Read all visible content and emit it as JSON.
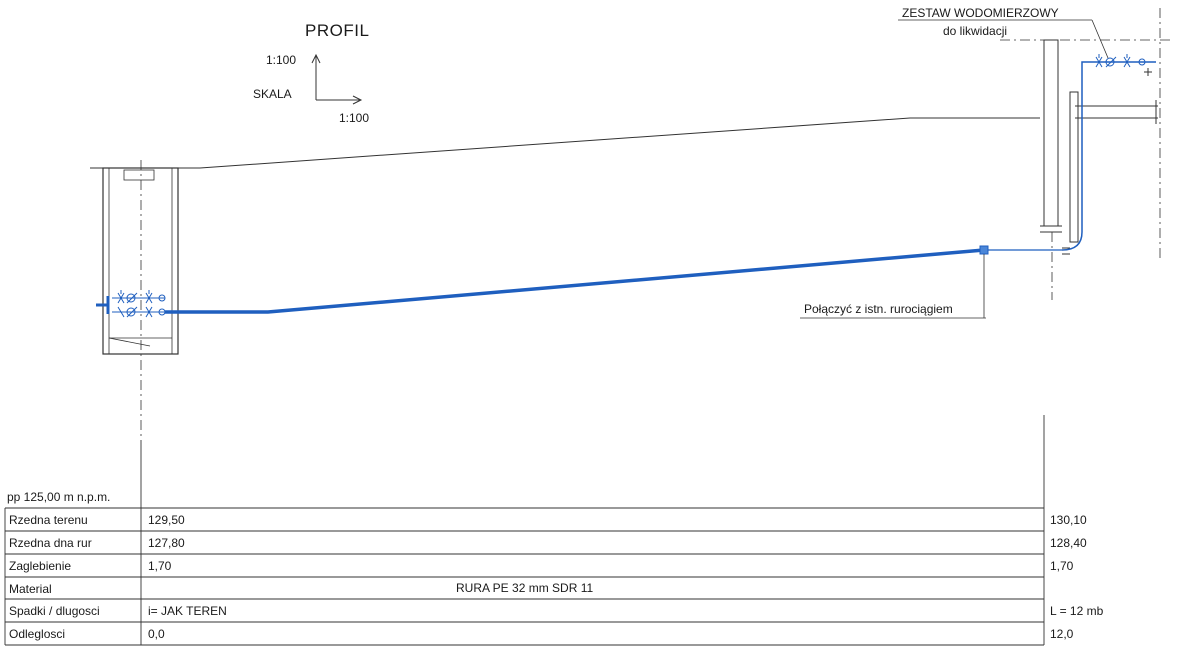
{
  "drawing": {
    "title": "PROFIL",
    "scale_label": "SKALA",
    "scale_vertical": "1:100",
    "scale_horizontal": "1:100",
    "meter_set_label": "ZESTAW WODOMIERZOWY",
    "meter_set_sublabel": "do likwidacji",
    "connect_note": "Połączyć z istn. rurociągiem",
    "pipe_color": "#1f5fbf",
    "line_color": "#333333"
  },
  "table": {
    "datum": "pp 125,00 m n.p.m.",
    "rows": [
      {
        "label": "Rzedna terenu",
        "start": "129,50",
        "end": "130,10",
        "middle": ""
      },
      {
        "label": "Rzedna dna rur",
        "start": "127,80",
        "end": "128,40",
        "middle": ""
      },
      {
        "label": "Zaglebienie",
        "start": "1,70",
        "end": "1,70",
        "middle": ""
      },
      {
        "label": "Material",
        "start": "",
        "end": "",
        "middle": "RURA PE 32 mm  SDR 11"
      },
      {
        "label": "Spadki / dlugosci",
        "start": "i= JAK TEREN",
        "end": "L = 12 mb",
        "middle": ""
      },
      {
        "label": "Odleglosci",
        "start": "0,0",
        "end": "12,0",
        "middle": ""
      }
    ]
  }
}
